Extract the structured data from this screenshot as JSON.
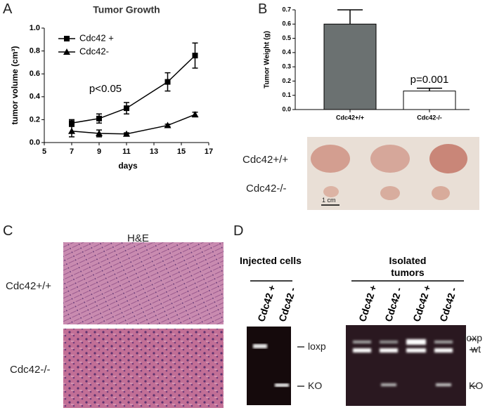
{
  "panel_labels": [
    "A",
    "B",
    "C",
    "D"
  ],
  "chart_data": [
    {
      "type": "line",
      "title": "Tumor Growth",
      "x_label": "days",
      "y_label": "tumor volume (cm³)",
      "annotation": "p<0.05",
      "x": [
        7,
        9,
        11,
        14,
        16
      ],
      "series": [
        {
          "name": "Cdc42 +",
          "color": "#000000",
          "marker": "square",
          "values": [
            0.17,
            0.21,
            0.3,
            0.53,
            0.76
          ],
          "errors": [
            0.03,
            0.04,
            0.05,
            0.08,
            0.11
          ]
        },
        {
          "name": "Cdc42-",
          "color": "#000000",
          "marker": "triangle",
          "values": [
            0.1,
            0.08,
            0.075,
            0.15,
            0.245
          ],
          "errors": [
            0.05,
            0.03,
            0.01,
            0.01,
            0.02
          ]
        }
      ],
      "xlim": [
        5,
        17
      ],
      "xticks": [
        5,
        7,
        9,
        11,
        13,
        15,
        17
      ],
      "ylim": [
        0,
        1
      ],
      "yticks": [
        {
          "value": 0,
          "label": "0.0"
        },
        0.2,
        0.4,
        0.6,
        0.8,
        {
          "value": 1,
          "label": "1.0"
        }
      ],
      "legend": "upper left"
    },
    {
      "type": "bar",
      "y_label": "Tumor Weight (g)",
      "annotation": "p=0.001",
      "categories": [
        "Cdc42+/+",
        "Cdc42-/-"
      ],
      "values": [
        0.6,
        0.13
      ],
      "errors": [
        0.1,
        0.02
      ],
      "colors": [
        "#6b7171",
        "#ffffff"
      ],
      "ylim": [
        0,
        0.7
      ],
      "yticks": [
        {
          "value": 0,
          "label": "0.0"
        },
        0.1,
        0.2,
        0.3,
        0.4,
        0.5,
        0.6,
        0.7
      ]
    }
  ],
  "photo_b": {
    "rows": [
      "Cdc42+/+",
      "Cdc42-/-"
    ],
    "scale": "1 cm"
  },
  "panel_c": {
    "title": "H&E",
    "rows": [
      "Cdc42+/+",
      "Cdc42-/-"
    ]
  },
  "panel_d": {
    "groups": [
      {
        "title": "Injected cells",
        "lanes": [
          "Cdc42 +",
          "Cdc42 -"
        ],
        "bands": [
          "loxp",
          "KO"
        ]
      },
      {
        "title": "Isolated tumors",
        "lanes": [
          "Cdc42 +",
          "Cdc42 -",
          "Cdc42 +",
          "Cdc42 -"
        ],
        "bands": [
          "loxp",
          "wt",
          "KO"
        ]
      }
    ]
  }
}
